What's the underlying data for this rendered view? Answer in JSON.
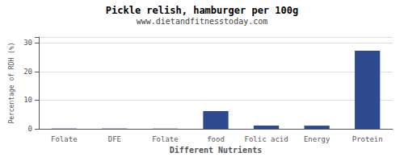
{
  "chart_data": {
    "type": "bar",
    "title": "Pickle relish, hamburger per 100g",
    "subtitle": "www.dietandfitnesstoday.com",
    "xlabel": "Different Nutrients",
    "ylabel": "Percentage of RDH (%)",
    "categories": [
      "Folate",
      "DFE",
      "Folate",
      "food",
      "Folic acid",
      "Energy",
      "Protein"
    ],
    "values": [
      0.1,
      0.1,
      0.1,
      6.2,
      1.1,
      1.1,
      27.2
    ],
    "color": "#2e4a8e",
    "ylim": [
      0,
      32
    ],
    "yticks": [
      0,
      10,
      20,
      30
    ],
    "grid": true
  }
}
